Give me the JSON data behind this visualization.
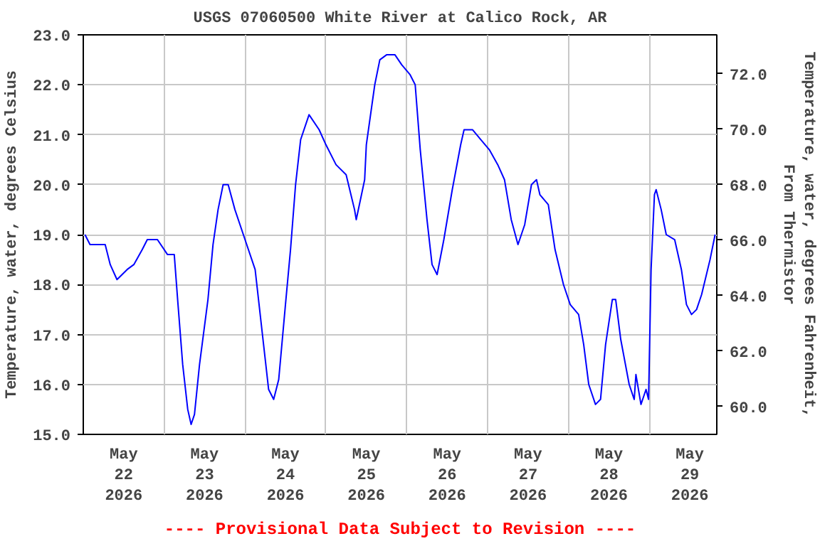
{
  "chart_data": {
    "type": "line",
    "title": "USGS 07060500 White River at Calico Rock, AR",
    "ylabel": "Temperature, water, degrees Celsius",
    "y2label": "Temperature, water, degrees Fahrenheit,\nFrom Thermistor",
    "annotations": [
      "---- Provisional Data Subject to Revision ----"
    ],
    "xlim": [
      "2026-05-22T00:00",
      "2026-05-29T20:00"
    ],
    "xticks": [
      {
        "value": "2026-05-22T12:00",
        "label": "May\n22\n2026"
      },
      {
        "value": "2026-05-23T12:00",
        "label": "May\n23\n2026"
      },
      {
        "value": "2026-05-24T12:00",
        "label": "May\n24\n2026"
      },
      {
        "value": "2026-05-25T12:00",
        "label": "May\n25\n2026"
      },
      {
        "value": "2026-05-26T12:00",
        "label": "May\n26\n2026"
      },
      {
        "value": "2026-05-27T12:00",
        "label": "May\n27\n2026"
      },
      {
        "value": "2026-05-28T12:00",
        "label": "May\n28\n2026"
      },
      {
        "value": "2026-05-29T12:00",
        "label": "May\n29\n2026"
      },
      {
        "value": "2026-05-23T00:00",
        "label": null
      },
      {
        "value": "2026-05-24T00:00",
        "label": null
      },
      {
        "value": "2026-05-25T00:00",
        "label": null
      },
      {
        "value": "2026-05-26T00:00",
        "label": null
      },
      {
        "value": "2026-05-27T00:00",
        "label": null
      },
      {
        "value": "2026-05-28T00:00",
        "label": null
      },
      {
        "value": "2026-05-29T00:00",
        "label": null
      }
    ],
    "ylim": [
      15,
      23
    ],
    "yticks": [
      {
        "value": 15,
        "label": "15.0"
      },
      {
        "value": 16,
        "label": "16.0"
      },
      {
        "value": 17,
        "label": "17.0"
      },
      {
        "value": 18,
        "label": "18.0"
      },
      {
        "value": 19,
        "label": "19.0"
      },
      {
        "value": 20,
        "label": "20.0"
      },
      {
        "value": 21,
        "label": "21.0"
      },
      {
        "value": 22,
        "label": "22.0"
      },
      {
        "value": 23,
        "label": "23.0"
      }
    ],
    "y2lim": [
      59,
      73.4
    ],
    "y2ticks": [
      {
        "value": 60,
        "label": "60.0"
      },
      {
        "value": 62,
        "label": "62.0"
      },
      {
        "value": 64,
        "label": "64.0"
      },
      {
        "value": 66,
        "label": "66.0"
      },
      {
        "value": 68,
        "label": "68.0"
      },
      {
        "value": 70,
        "label": "70.0"
      },
      {
        "value": 72,
        "label": "72.0"
      }
    ],
    "grid": true,
    "line_style": "solid",
    "marker": "none",
    "series": [
      {
        "color": "#0000ff",
        "x": [
          "2026-05-22T00:30",
          "2026-05-22T02:00",
          "2026-05-22T06:30",
          "2026-05-22T08:00",
          "2026-05-22T10:00",
          "2026-05-22T11:30",
          "2026-05-22T13:00",
          "2026-05-22T15:00",
          "2026-05-22T17:30",
          "2026-05-22T19:00",
          "2026-05-22T22:00",
          "2026-05-23T01:00",
          "2026-05-23T03:00",
          "2026-05-23T04:00",
          "2026-05-23T05:30",
          "2026-05-23T07:00",
          "2026-05-23T08:00",
          "2026-05-23T09:00",
          "2026-05-23T10:30",
          "2026-05-23T13:00",
          "2026-05-23T14:30",
          "2026-05-23T16:00",
          "2026-05-23T17:30",
          "2026-05-23T19:00",
          "2026-05-23T21:00",
          "2026-05-24T00:00",
          "2026-05-24T03:00",
          "2026-05-24T05:30",
          "2026-05-24T07:00",
          "2026-05-24T08:30",
          "2026-05-24T10:00",
          "2026-05-24T12:00",
          "2026-05-24T13:30",
          "2026-05-24T15:00",
          "2026-05-24T16:30",
          "2026-05-24T19:00",
          "2026-05-24T22:00",
          "2026-05-25T00:00",
          "2026-05-25T03:00",
          "2026-05-25T06:00",
          "2026-05-25T08:30",
          "2026-05-25T09:00",
          "2026-05-25T11:30",
          "2026-05-25T12:00",
          "2026-05-25T14:30",
          "2026-05-25T16:00",
          "2026-05-25T18:00",
          "2026-05-25T20:30",
          "2026-05-25T22:30",
          "2026-05-26T01:00",
          "2026-05-26T02:30",
          "2026-05-26T04:00",
          "2026-05-26T06:00",
          "2026-05-26T07:30",
          "2026-05-26T09:00",
          "2026-05-26T11:00",
          "2026-05-26T13:30",
          "2026-05-26T16:00",
          "2026-05-26T17:00",
          "2026-05-26T19:30",
          "2026-05-26T22:00",
          "2026-05-27T00:30",
          "2026-05-27T03:00",
          "2026-05-27T05:00",
          "2026-05-27T07:00",
          "2026-05-27T09:00",
          "2026-05-27T11:00",
          "2026-05-27T13:00",
          "2026-05-27T14:30",
          "2026-05-27T15:30",
          "2026-05-27T18:00",
          "2026-05-27T20:00",
          "2026-05-27T22:30",
          "2026-05-28T00:30",
          "2026-05-28T03:00",
          "2026-05-28T04:30",
          "2026-05-28T06:00",
          "2026-05-28T08:00",
          "2026-05-28T09:30",
          "2026-05-28T11:00",
          "2026-05-28T13:00",
          "2026-05-28T14:00",
          "2026-05-28T15:30",
          "2026-05-28T18:00",
          "2026-05-28T19:30",
          "2026-05-28T20:00",
          "2026-05-28T21:30",
          "2026-05-28T23:00",
          "2026-05-28T23:45",
          "2026-05-29T00:30",
          "2026-05-29T01:30",
          "2026-05-29T02:00",
          "2026-05-29T03:30",
          "2026-05-29T05:00",
          "2026-05-29T07:30",
          "2026-05-29T09:30",
          "2026-05-29T11:00",
          "2026-05-29T12:30",
          "2026-05-29T14:00",
          "2026-05-29T15:30",
          "2026-05-29T18:00",
          "2026-05-29T19:30"
        ],
        "values": [
          19.0,
          18.8,
          18.8,
          18.4,
          18.1,
          18.2,
          18.3,
          18.4,
          18.7,
          18.9,
          18.9,
          18.6,
          18.6,
          17.7,
          16.4,
          15.5,
          15.2,
          15.4,
          16.4,
          17.7,
          18.8,
          19.5,
          20.0,
          20.0,
          19.5,
          18.9,
          18.3,
          16.8,
          15.9,
          15.7,
          16.1,
          17.6,
          18.7,
          20.0,
          20.9,
          21.4,
          21.1,
          20.8,
          20.4,
          20.2,
          19.5,
          19.3,
          20.1,
          20.8,
          22.0,
          22.5,
          22.6,
          22.6,
          22.4,
          22.2,
          22.0,
          20.7,
          19.3,
          18.4,
          18.2,
          18.9,
          19.9,
          20.8,
          21.1,
          21.1,
          20.9,
          20.7,
          20.4,
          20.1,
          19.3,
          18.8,
          19.2,
          20.0,
          20.1,
          19.8,
          19.6,
          18.7,
          18.0,
          17.6,
          17.4,
          16.8,
          16.0,
          15.6,
          15.7,
          16.8,
          17.7,
          17.7,
          16.9,
          16.0,
          15.7,
          16.2,
          15.6,
          15.9,
          15.7,
          18.3,
          19.8,
          19.9,
          19.5,
          19.0,
          18.9,
          18.3,
          17.6,
          17.4,
          17.5,
          17.8,
          18.5,
          19.0
        ]
      }
    ]
  }
}
